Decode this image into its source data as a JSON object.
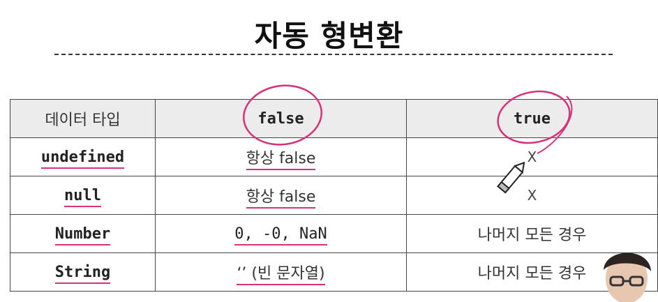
{
  "title": "자동 형변환",
  "table": {
    "headers": [
      "데이터 타입",
      "false",
      "true"
    ],
    "rows": [
      {
        "type": "undefined",
        "falsy": "항상 false",
        "truthy": "X"
      },
      {
        "type": "null",
        "falsy": "항상 false",
        "truthy": "X"
      },
      {
        "type": "Number",
        "falsy": "0, -0, NaN",
        "truthy": "나머지 모든 경우"
      },
      {
        "type": "String",
        "falsy": "‘’ (빈 문자열)",
        "truthy": "나머지 모든 경우"
      }
    ]
  },
  "annotation_color": "#d6317a",
  "icons": [
    "pencil-cursor-icon"
  ]
}
